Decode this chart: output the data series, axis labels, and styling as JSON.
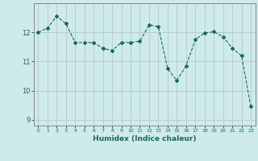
{
  "x": [
    0,
    1,
    2,
    3,
    4,
    5,
    6,
    7,
    8,
    9,
    10,
    11,
    12,
    13,
    14,
    15,
    16,
    17,
    18,
    19,
    20,
    21,
    22,
    23
  ],
  "y": [
    12.0,
    12.15,
    12.55,
    12.3,
    11.65,
    11.65,
    11.65,
    11.45,
    11.38,
    11.65,
    11.65,
    11.7,
    12.25,
    12.2,
    10.75,
    10.35,
    10.85,
    11.75,
    11.98,
    12.02,
    11.85,
    11.45,
    11.2,
    9.45
  ],
  "line_color": "#1a6b5a",
  "marker": "D",
  "marker_size": 2.0,
  "bg_color": "#ceeaea",
  "grid_color": "#b8c8c8",
  "xlabel": "Humidex (Indice chaleur)",
  "ylim": [
    8.8,
    13.0
  ],
  "xlim": [
    -0.5,
    23.5
  ],
  "yticks": [
    9,
    10,
    11,
    12
  ],
  "xticks": [
    0,
    1,
    2,
    3,
    4,
    5,
    6,
    7,
    8,
    9,
    10,
    11,
    12,
    13,
    14,
    15,
    16,
    17,
    18,
    19,
    20,
    21,
    22,
    23
  ]
}
